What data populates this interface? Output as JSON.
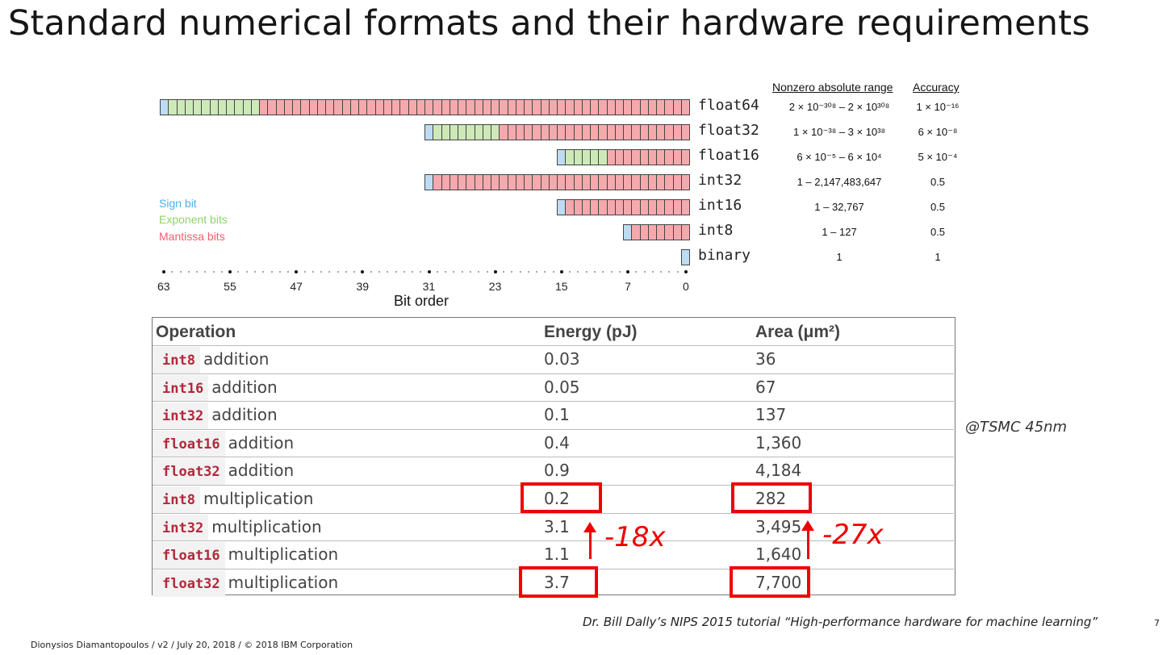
{
  "title": "Standard numerical formats and their hardware requirements",
  "diagram": {
    "header_range": "Nonzero absolute range",
    "header_accuracy": "Accuracy",
    "formats": [
      {
        "name": "float64",
        "range": "2 × 10⁻³⁰⁸ – 2 × 10³⁰⁸",
        "accuracy": "1 × 10⁻¹⁶",
        "sign": 1,
        "exponent": 11,
        "mantissa": 52
      },
      {
        "name": "float32",
        "range": "1 × 10⁻³⁸ – 3 × 10³⁸",
        "accuracy": "6 × 10⁻⁸",
        "sign": 1,
        "exponent": 8,
        "mantissa": 23
      },
      {
        "name": "float16",
        "range": "6 × 10⁻⁵ – 6 × 10⁴",
        "accuracy": "5 × 10⁻⁴",
        "sign": 1,
        "exponent": 5,
        "mantissa": 10
      },
      {
        "name": "int32",
        "range": "1 – 2,147,483,647",
        "accuracy": "0.5",
        "sign": 1,
        "exponent": 0,
        "mantissa": 31
      },
      {
        "name": "int16",
        "range": "1 – 32,767",
        "accuracy": "0.5",
        "sign": 1,
        "exponent": 0,
        "mantissa": 15
      },
      {
        "name": "int8",
        "range": "1 – 127",
        "accuracy": "0.5",
        "sign": 1,
        "exponent": 0,
        "mantissa": 7
      },
      {
        "name": "binary",
        "range": "1",
        "accuracy": "1",
        "sign": 1,
        "exponent": 0,
        "mantissa": 0
      }
    ],
    "legend": {
      "sign": "Sign bit",
      "exponent": "Exponent bits",
      "mantissa": "Mantissa bits",
      "sign_color": "#4fb0e6",
      "exponent_color": "#8fd36a",
      "mantissa_color": "#ef5d6a"
    },
    "ticks": [
      "63",
      "55",
      "47",
      "39",
      "31",
      "23",
      "15",
      "7",
      "0"
    ],
    "axis_label": "Bit order"
  },
  "table": {
    "headers": {
      "operation": "Operation",
      "energy": "Energy (pJ)",
      "area": "Area (μm²)"
    },
    "rows": [
      {
        "type": "int8",
        "op": "addition",
        "energy": "0.03",
        "area": "36"
      },
      {
        "type": "int16",
        "op": "addition",
        "energy": "0.05",
        "area": "67"
      },
      {
        "type": "int32",
        "op": "addition",
        "energy": "0.1",
        "area": "137"
      },
      {
        "type": "float16",
        "op": "addition",
        "energy": "0.4",
        "area": "1,360"
      },
      {
        "type": "float32",
        "op": "addition",
        "energy": "0.9",
        "area": "4,184"
      },
      {
        "type": "int8",
        "op": "multiplication",
        "energy": "0.2",
        "area": "282"
      },
      {
        "type": "int32",
        "op": "multiplication",
        "energy": "3.1",
        "area": "3,495"
      },
      {
        "type": "float16",
        "op": "multiplication",
        "energy": "1.1",
        "area": "1,640"
      },
      {
        "type": "float32",
        "op": "multiplication",
        "energy": "3.7",
        "area": "7,700"
      }
    ]
  },
  "annotations": {
    "energy_reduction": "-18x",
    "area_reduction": "-27x",
    "tech_node": "@TSMC 45nm"
  },
  "citation": "Dr. Bill Dally’s NIPS 2015 tutorial “High-performance hardware for machine learning”",
  "page_number": "7",
  "footer": "Dionysios Diamantopoulos / v2 / July 20, 2018 / © 2018 IBM Corporation"
}
